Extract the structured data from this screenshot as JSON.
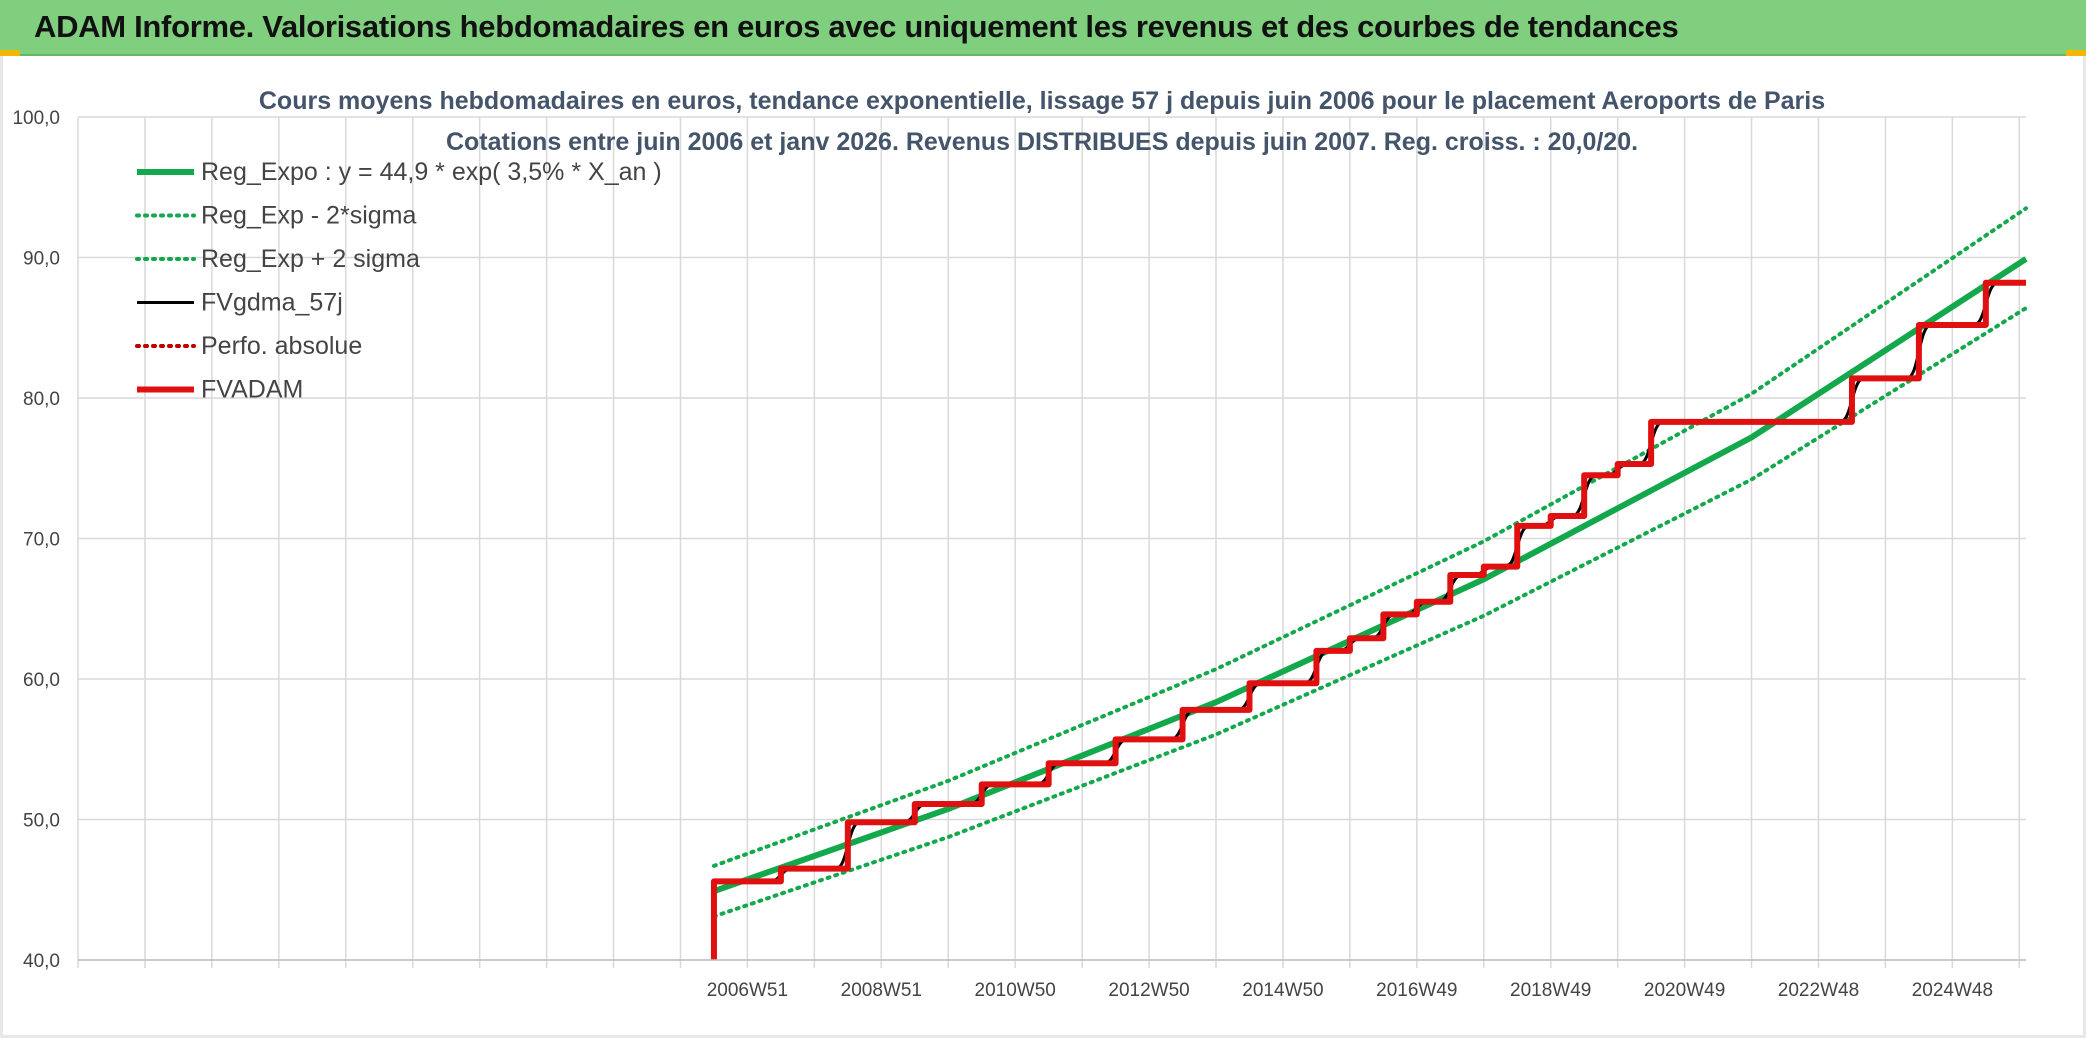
{
  "header": {
    "title": "ADAM Informe. Valorisations hebdomadaires en euros avec uniquement les revenus et des courbes de tendances"
  },
  "colors": {
    "header_bg": "#7fcf7f",
    "trend": "#13a84b",
    "fv": "#000000",
    "adam": "#e01010",
    "perf": "#c00000"
  },
  "chart_data": {
    "type": "line",
    "title": "Cours moyens hebdomadaires en euros, tendance exponentielle, lissage 57 j depuis juin 2006 pour le placement Aeroports de Paris",
    "subtitle": "Cotations entre juin 2006 et janv 2026. Revenus DISTRIBUES depuis juin 2007. Reg. croiss. : 20,0/20.",
    "xlabel": "",
    "ylabel": "",
    "ylim": [
      40,
      100
    ],
    "xlim": [
      1997.0,
      2026.1
    ],
    "grid": true,
    "legend_position": "top-left",
    "y_ticks": [
      "40,0",
      "50,0",
      "60,0",
      "70,0",
      "80,0",
      "90,0",
      "100,0"
    ],
    "x_ticks": [
      {
        "label": "2006W51",
        "x": 2007.0
      },
      {
        "label": "2008W51",
        "x": 2009.0
      },
      {
        "label": "2010W50",
        "x": 2011.0
      },
      {
        "label": "2012W50",
        "x": 2013.0
      },
      {
        "label": "2014W50",
        "x": 2015.0
      },
      {
        "label": "2016W49",
        "x": 2017.0
      },
      {
        "label": "2018W49",
        "x": 2019.0
      },
      {
        "label": "2020W49",
        "x": 2021.0
      },
      {
        "label": "2022W48",
        "x": 2023.0
      },
      {
        "label": "2024W48",
        "x": 2025.0
      }
    ],
    "series": [
      {
        "name": "Reg_Expo : y = 44,9 * exp( 3,5% *  X_an )",
        "style": "solid-thick",
        "color": "#13a84b",
        "points": [
          [
            2006.5,
            44.9
          ],
          [
            2010,
            50.75
          ],
          [
            2014,
            58.35
          ],
          [
            2018,
            67.1
          ],
          [
            2022,
            77.2
          ],
          [
            2026.1,
            89.9
          ]
        ]
      },
      {
        "name": "Reg_Exp - 2*sigma",
        "style": "dotted",
        "color": "#13a84b",
        "points": [
          [
            2006.5,
            43.1
          ],
          [
            2010,
            48.75
          ],
          [
            2014,
            56.05
          ],
          [
            2018,
            64.5
          ],
          [
            2022,
            74.2
          ],
          [
            2026.1,
            86.4
          ]
        ]
      },
      {
        "name": "Reg_Exp + 2 sigma",
        "style": "dotted",
        "color": "#13a84b",
        "points": [
          [
            2006.5,
            46.7
          ],
          [
            2010,
            52.75
          ],
          [
            2014,
            60.7
          ],
          [
            2018,
            69.8
          ],
          [
            2022,
            80.3
          ],
          [
            2026.1,
            93.5
          ]
        ]
      },
      {
        "name": "FVgdma_57j",
        "style": "solid",
        "color": "#000000",
        "smooth_steps": true,
        "points": [
          [
            2006.5,
            40.0
          ],
          [
            2006.5,
            45.6
          ],
          [
            2007.5,
            45.6
          ],
          [
            2007.5,
            46.5
          ],
          [
            2008.5,
            46.5
          ],
          [
            2008.5,
            49.8
          ],
          [
            2009.5,
            49.8
          ],
          [
            2009.5,
            51.1
          ],
          [
            2010.5,
            51.1
          ],
          [
            2010.5,
            52.5
          ],
          [
            2011.5,
            52.5
          ],
          [
            2011.5,
            54.0
          ],
          [
            2012.5,
            54.0
          ],
          [
            2012.5,
            55.7
          ],
          [
            2013.5,
            55.7
          ],
          [
            2013.5,
            57.8
          ],
          [
            2014.5,
            57.8
          ],
          [
            2014.5,
            59.7
          ],
          [
            2015.5,
            59.7
          ],
          [
            2015.5,
            62.0
          ],
          [
            2016.0,
            62.0
          ],
          [
            2016.0,
            62.9
          ],
          [
            2016.5,
            62.9
          ],
          [
            2016.5,
            64.6
          ],
          [
            2017.0,
            64.6
          ],
          [
            2017.0,
            65.5
          ],
          [
            2017.5,
            65.5
          ],
          [
            2017.5,
            67.4
          ],
          [
            2018.0,
            67.4
          ],
          [
            2018.0,
            68.0
          ],
          [
            2018.5,
            68.0
          ],
          [
            2018.5,
            70.9
          ],
          [
            2019.0,
            70.9
          ],
          [
            2019.0,
            71.6
          ],
          [
            2019.5,
            71.6
          ],
          [
            2019.5,
            74.5
          ],
          [
            2020.0,
            74.5
          ],
          [
            2020.0,
            75.3
          ],
          [
            2020.5,
            75.3
          ],
          [
            2020.5,
            78.3
          ],
          [
            2023.5,
            78.3
          ],
          [
            2023.5,
            81.4
          ],
          [
            2024.5,
            81.4
          ],
          [
            2024.5,
            85.2
          ],
          [
            2025.5,
            85.2
          ],
          [
            2025.5,
            88.2
          ],
          [
            2026.1,
            88.2
          ]
        ]
      },
      {
        "name": "Perfo. absolue",
        "style": "dotted",
        "color": "#c00000",
        "points": []
      },
      {
        "name": "FVADAM",
        "style": "solid-thick",
        "color": "#e01010",
        "points": [
          [
            2006.5,
            40.0
          ],
          [
            2006.5,
            45.6
          ],
          [
            2007.5,
            45.6
          ],
          [
            2007.5,
            46.5
          ],
          [
            2008.5,
            46.5
          ],
          [
            2008.5,
            49.8
          ],
          [
            2009.5,
            49.8
          ],
          [
            2009.5,
            51.1
          ],
          [
            2010.5,
            51.1
          ],
          [
            2010.5,
            52.5
          ],
          [
            2011.5,
            52.5
          ],
          [
            2011.5,
            54.0
          ],
          [
            2012.5,
            54.0
          ],
          [
            2012.5,
            55.7
          ],
          [
            2013.5,
            55.7
          ],
          [
            2013.5,
            57.8
          ],
          [
            2014.5,
            57.8
          ],
          [
            2014.5,
            59.7
          ],
          [
            2015.5,
            59.7
          ],
          [
            2015.5,
            62.0
          ],
          [
            2016.0,
            62.0
          ],
          [
            2016.0,
            62.9
          ],
          [
            2016.5,
            62.9
          ],
          [
            2016.5,
            64.6
          ],
          [
            2017.0,
            64.6
          ],
          [
            2017.0,
            65.5
          ],
          [
            2017.5,
            65.5
          ],
          [
            2017.5,
            67.4
          ],
          [
            2018.0,
            67.4
          ],
          [
            2018.0,
            68.0
          ],
          [
            2018.5,
            68.0
          ],
          [
            2018.5,
            70.9
          ],
          [
            2019.0,
            70.9
          ],
          [
            2019.0,
            71.6
          ],
          [
            2019.5,
            71.6
          ],
          [
            2019.5,
            74.5
          ],
          [
            2020.0,
            74.5
          ],
          [
            2020.0,
            75.3
          ],
          [
            2020.5,
            75.3
          ],
          [
            2020.5,
            78.3
          ],
          [
            2023.5,
            78.3
          ],
          [
            2023.5,
            81.4
          ],
          [
            2024.5,
            81.4
          ],
          [
            2024.5,
            85.2
          ],
          [
            2025.5,
            85.2
          ],
          [
            2025.5,
            88.2
          ],
          [
            2026.1,
            88.2
          ]
        ]
      }
    ]
  }
}
